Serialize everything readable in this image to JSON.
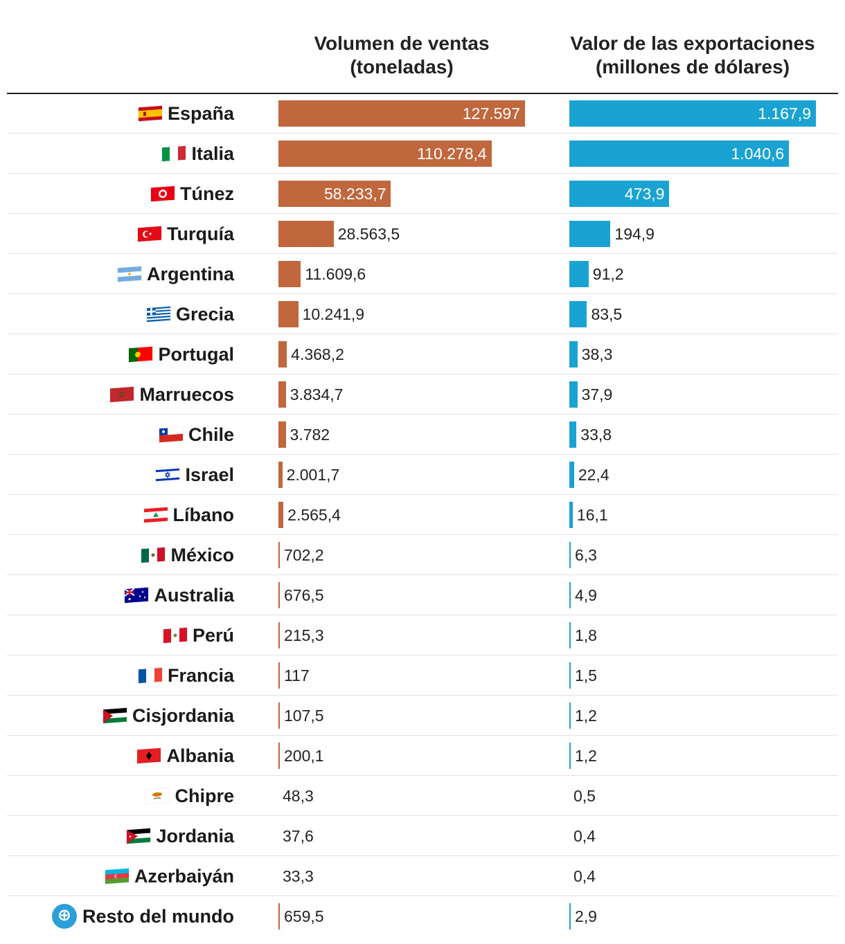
{
  "colors": {
    "volume_bar": "#c0673d",
    "value_bar": "#1aa3d2"
  },
  "chart_data": {
    "type": "bar",
    "orientation": "horizontal",
    "title": "",
    "categories": [
      "España",
      "Italia",
      "Túnez",
      "Turquía",
      "Argentina",
      "Grecia",
      "Portugal",
      "Marruecos",
      "Chile",
      "Israel",
      "Líbano",
      "México",
      "Australia",
      "Perú",
      "Francia",
      "Cisjordania",
      "Albania",
      "Chipre",
      "Jordania",
      "Azerbaiyán",
      "Resto del mundo"
    ],
    "series": [
      {
        "name": "Volumen de ventas (toneladas)",
        "header_line1": "Volumen de ventas",
        "header_line2": "(toneladas)",
        "max": 127597,
        "values": [
          127597,
          110278.4,
          58233.7,
          28563.5,
          11609.6,
          10241.9,
          4368.2,
          3834.7,
          3782,
          2001.7,
          2565.4,
          702.2,
          676.5,
          215.3,
          117,
          107.5,
          200.1,
          48.3,
          37.6,
          33.3,
          659.5
        ],
        "labels": [
          "127.597",
          "110.278,4",
          "58.233,7",
          "28.563,5",
          "11.609,6",
          "10.241,9",
          "4.368,2",
          "3.834,7",
          "3.782",
          "2.001,7",
          "2.565,4",
          "702,2",
          "676,5",
          "215,3",
          "117",
          "107,5",
          "200,1",
          "48,3",
          "37,6",
          "33,3",
          "659,5"
        ]
      },
      {
        "name": "Valor de las exportaciones (millones de dólares)",
        "header_line1": "Valor de las exportaciones",
        "header_line2": "(millones de dólares)",
        "max": 1167.9,
        "values": [
          1167.9,
          1040.6,
          473.9,
          194.9,
          91.2,
          83.5,
          38.3,
          37.9,
          33.8,
          22.4,
          16.1,
          6.3,
          4.9,
          1.8,
          1.5,
          1.2,
          1.2,
          0.5,
          0.4,
          0.4,
          2.9
        ],
        "labels": [
          "1.167,9",
          "1.040,6",
          "473,9",
          "194,9",
          "91,2",
          "83,5",
          "38,3",
          "37,9",
          "33,8",
          "22,4",
          "16,1",
          "6,3",
          "4,9",
          "1,8",
          "1,5",
          "1,2",
          "1,2",
          "0,5",
          "0,4",
          "0,4",
          "2,9"
        ]
      }
    ],
    "flags": [
      "spain-flag-icon",
      "italy-flag-icon",
      "tunisia-flag-icon",
      "turkey-flag-icon",
      "argentina-flag-icon",
      "greece-flag-icon",
      "portugal-flag-icon",
      "morocco-flag-icon",
      "chile-flag-icon",
      "israel-flag-icon",
      "lebanon-flag-icon",
      "mexico-flag-icon",
      "australia-flag-icon",
      "peru-flag-icon",
      "france-flag-icon",
      "west-bank-flag-icon",
      "albania-flag-icon",
      "cyprus-flag-icon",
      "jordan-flag-icon",
      "azerbaijan-flag-icon",
      "un-globe-icon"
    ]
  }
}
